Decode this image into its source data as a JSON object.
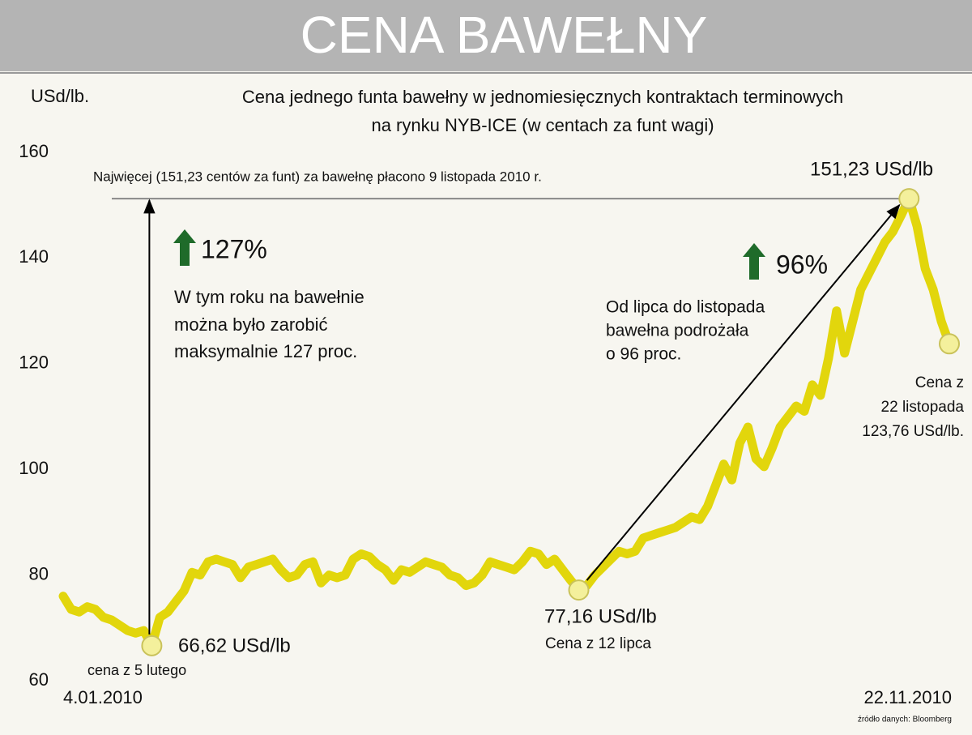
{
  "chart_data": {
    "type": "line",
    "title": "CENA BAWEŁNY",
    "subtitle": [
      "Cena jednego funta bawełny w jednomiesięcznych kontraktach terminowych",
      "na rynku NYB-ICE (w centach za funt wagi)"
    ],
    "y_axis_label": "USd/lb.",
    "source": "źródło danych: Bloomberg",
    "categories": [
      "4.01.2010",
      null,
      null,
      null,
      null,
      null,
      null,
      null,
      null,
      null,
      null,
      null,
      null,
      null,
      null,
      null,
      null,
      null,
      null,
      null,
      null,
      null,
      null,
      null,
      null,
      null,
      null,
      null,
      null,
      null,
      null,
      null,
      null,
      null,
      null,
      null,
      null,
      null,
      null,
      null,
      null,
      null,
      null,
      null,
      null,
      null,
      null,
      null,
      null,
      null,
      null,
      null,
      null,
      null,
      null,
      null,
      null,
      null,
      null,
      null,
      null,
      null,
      null,
      null,
      null,
      null,
      null,
      null,
      null,
      null,
      null,
      null,
      null,
      null,
      null,
      null,
      null,
      null,
      null,
      null,
      null,
      null,
      null,
      null,
      null,
      null,
      null,
      null,
      null,
      null,
      null,
      null,
      null,
      null,
      null,
      null,
      null,
      null,
      null,
      null,
      null,
      null,
      null,
      null,
      null,
      null,
      null,
      null,
      null,
      null,
      "22.11.2010"
    ],
    "values": [
      76,
      73.5,
      73,
      74,
      73.5,
      72,
      71.5,
      70.5,
      69.5,
      69,
      69.5,
      66.62,
      72,
      73,
      75,
      77,
      80.5,
      80,
      82.5,
      83,
      82.5,
      82,
      79.5,
      81.5,
      82,
      82.5,
      83,
      81,
      79.5,
      80,
      82,
      82.5,
      78.5,
      80,
      79.5,
      80,
      83,
      84,
      83.5,
      82,
      81,
      79,
      81,
      80.5,
      81.5,
      82.5,
      82,
      81.5,
      80,
      79.5,
      78,
      78.5,
      80,
      82.5,
      82,
      81.5,
      81,
      82.5,
      84.5,
      84,
      82,
      83,
      81,
      79,
      77.16,
      78,
      80,
      81.5,
      83,
      84.5,
      84,
      84.5,
      87,
      87.5,
      88,
      88.5,
      89,
      90,
      91,
      90.5,
      93,
      97,
      101,
      98,
      105,
      108,
      102,
      100.5,
      104,
      108,
      110,
      112,
      111,
      116,
      114,
      121,
      130,
      122,
      128,
      134,
      137,
      140,
      143,
      145,
      148,
      151.23,
      146,
      138,
      134,
      128,
      123.76
    ],
    "color": "#e2d60c",
    "ylim": [
      60,
      160
    ],
    "yticks": [
      60,
      80,
      100,
      120,
      140,
      160
    ],
    "grid": false,
    "annotations": {
      "max_note": "Najwięcej (151,23 centów za funt) za bawełnę płacono 9 listopada 2010 r.",
      "peak_label": "151,23 USd/lb",
      "growth_year": "127%",
      "growth_year_text": [
        "W tym roku na bawełnie",
        "można było zarobić",
        "maksymalnie 127 proc."
      ],
      "growth_summer": "96%",
      "growth_summer_text": [
        "Od lipca do listopada",
        "bawełna podrożała",
        "o 96 proc."
      ],
      "last_text": [
        "Cena z",
        "22 listopada",
        "123,76 USd/lb."
      ],
      "july_label": "77,16 USd/lb",
      "july_text": "Cena z 12 lipca",
      "feb_label": "66,62 USd/lb",
      "feb_text": "cena z 5 lutego"
    }
  }
}
